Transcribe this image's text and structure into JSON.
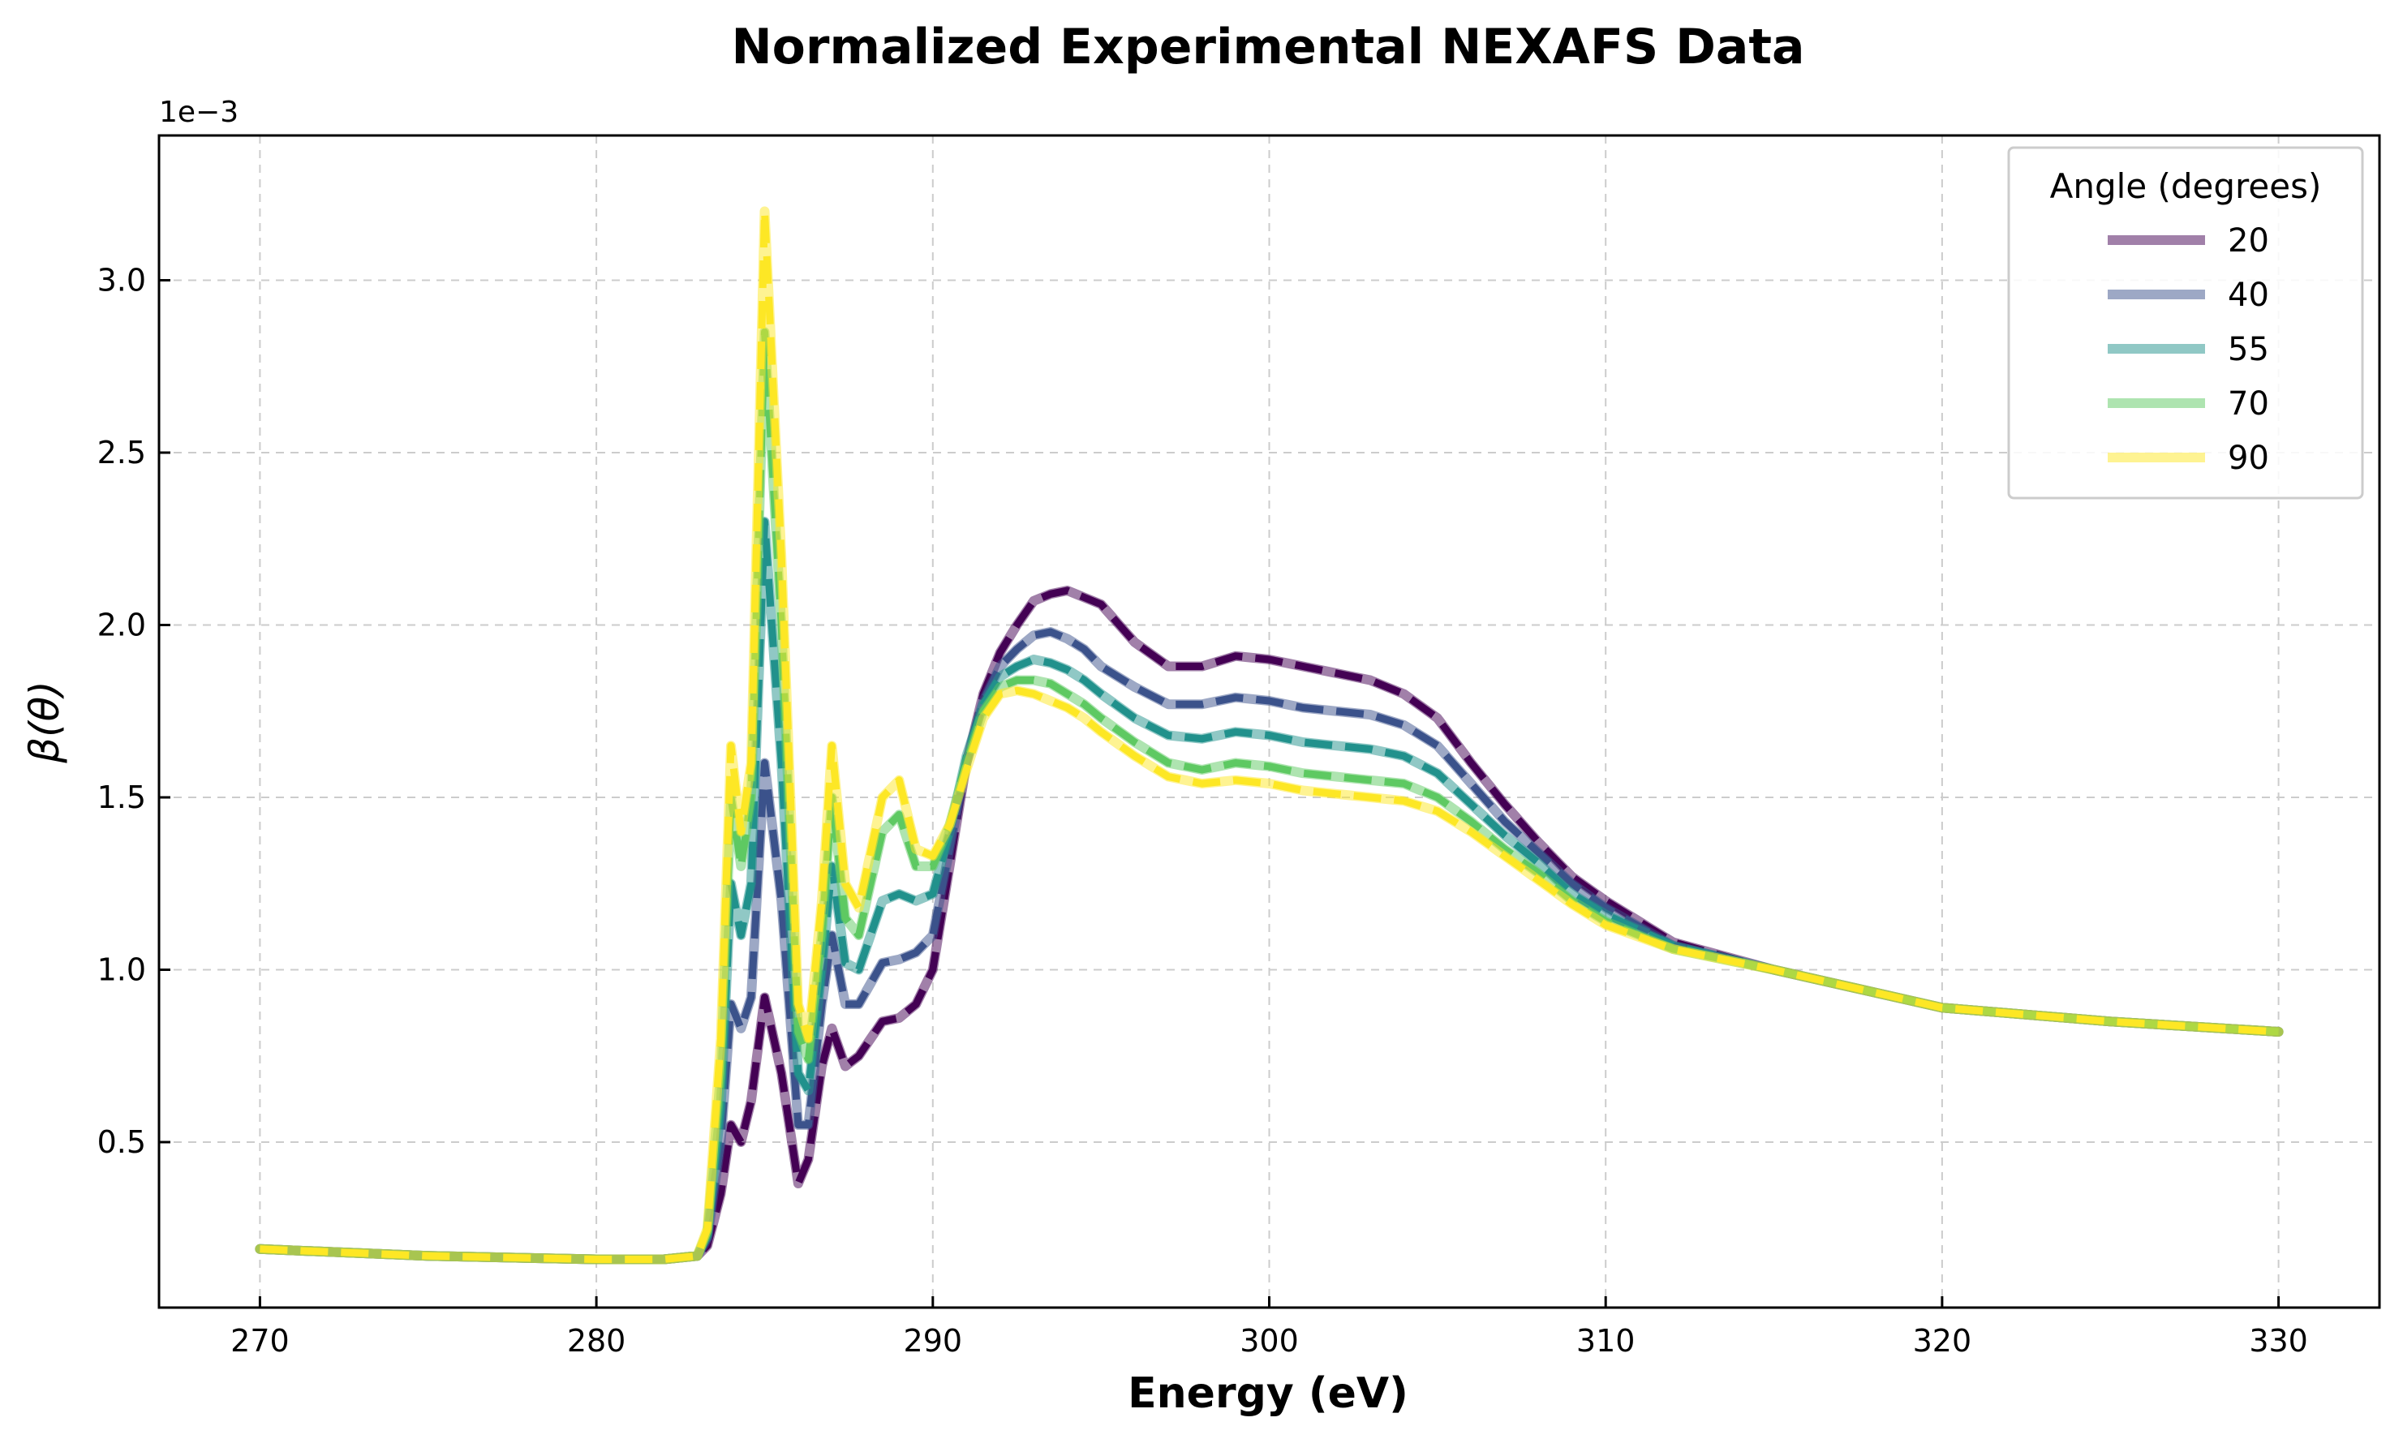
{
  "chart_data": {
    "type": "line",
    "title": "Normalized Experimental NEXAFS Data",
    "xlabel": "Energy (eV)",
    "ylabel": "β(θ)",
    "y_offset_label": "1e−3",
    "xlim": [
      267,
      333
    ],
    "ylim": [
      0.02,
      3.42
    ],
    "xticks": [
      270,
      280,
      290,
      300,
      310,
      320,
      330
    ],
    "xtick_labels": [
      "270",
      "280",
      "290",
      "300",
      "310",
      "320",
      "330"
    ],
    "yticks": [
      0.5,
      1.0,
      1.5,
      2.0,
      2.5,
      3.0
    ],
    "ytick_labels": [
      "0.5",
      "1.0",
      "1.5",
      "2.0",
      "2.5",
      "3.0"
    ],
    "grid": true,
    "legend": {
      "title": "Angle (degrees)",
      "position": "top-right"
    },
    "units_note": "y values in units of 1e-3",
    "series": [
      {
        "name": "20",
        "color": "#440154",
        "x": [
          270,
          275,
          280,
          282,
          283,
          283.3,
          283.7,
          284,
          284.3,
          284.6,
          285,
          285.5,
          286,
          286.3,
          286.7,
          287,
          287.4,
          287.8,
          288.5,
          289,
          289.5,
          290,
          290.5,
          291,
          291.5,
          292,
          292.5,
          293,
          293.5,
          294,
          294.5,
          295,
          296,
          297,
          298,
          299,
          300,
          301,
          302,
          303,
          304,
          305,
          306,
          307,
          308,
          309,
          310,
          312,
          315,
          320,
          325,
          330
        ],
        "y": [
          0.19,
          0.17,
          0.16,
          0.16,
          0.17,
          0.2,
          0.35,
          0.55,
          0.5,
          0.62,
          0.92,
          0.7,
          0.38,
          0.45,
          0.72,
          0.83,
          0.72,
          0.75,
          0.85,
          0.86,
          0.9,
          1.0,
          1.3,
          1.6,
          1.8,
          1.92,
          2.0,
          2.07,
          2.09,
          2.1,
          2.08,
          2.06,
          1.95,
          1.88,
          1.88,
          1.91,
          1.9,
          1.88,
          1.86,
          1.84,
          1.8,
          1.73,
          1.6,
          1.48,
          1.37,
          1.27,
          1.2,
          1.08,
          1.0,
          0.89,
          0.85,
          0.82
        ]
      },
      {
        "name": "40",
        "color": "#3b528b",
        "x": [
          270,
          275,
          280,
          282,
          283,
          283.3,
          283.7,
          284,
          284.3,
          284.6,
          285,
          285.5,
          286,
          286.3,
          286.7,
          287,
          287.4,
          287.8,
          288.5,
          289,
          289.5,
          290,
          290.5,
          291,
          291.5,
          292,
          292.5,
          293,
          293.5,
          294,
          294.5,
          295,
          296,
          297,
          298,
          299,
          300,
          301,
          302,
          303,
          304,
          305,
          306,
          307,
          308,
          309,
          310,
          312,
          315,
          320,
          325,
          330
        ],
        "y": [
          0.19,
          0.17,
          0.16,
          0.16,
          0.17,
          0.22,
          0.5,
          0.9,
          0.83,
          0.92,
          1.6,
          1.2,
          0.55,
          0.55,
          0.9,
          1.1,
          0.9,
          0.9,
          1.02,
          1.03,
          1.05,
          1.1,
          1.35,
          1.6,
          1.78,
          1.88,
          1.93,
          1.97,
          1.98,
          1.96,
          1.93,
          1.88,
          1.82,
          1.77,
          1.77,
          1.79,
          1.78,
          1.76,
          1.75,
          1.74,
          1.71,
          1.65,
          1.54,
          1.43,
          1.34,
          1.25,
          1.18,
          1.07,
          1.0,
          0.89,
          0.85,
          0.82
        ]
      },
      {
        "name": "55",
        "color": "#21918c",
        "x": [
          270,
          275,
          280,
          282,
          283,
          283.3,
          283.7,
          284,
          284.3,
          284.6,
          285,
          285.5,
          286,
          286.3,
          286.7,
          287,
          287.4,
          287.8,
          288.5,
          289,
          289.5,
          290,
          290.5,
          291,
          291.5,
          292,
          292.5,
          293,
          293.5,
          294,
          294.5,
          295,
          296,
          297,
          298,
          299,
          300,
          301,
          302,
          303,
          304,
          305,
          306,
          307,
          308,
          309,
          310,
          312,
          315,
          320,
          325,
          330
        ],
        "y": [
          0.19,
          0.17,
          0.16,
          0.16,
          0.17,
          0.23,
          0.6,
          1.25,
          1.1,
          1.25,
          2.3,
          1.6,
          0.7,
          0.65,
          1.0,
          1.3,
          1.02,
          1.0,
          1.2,
          1.22,
          1.2,
          1.22,
          1.4,
          1.62,
          1.77,
          1.85,
          1.88,
          1.9,
          1.89,
          1.87,
          1.84,
          1.8,
          1.73,
          1.68,
          1.67,
          1.69,
          1.68,
          1.66,
          1.65,
          1.64,
          1.62,
          1.57,
          1.48,
          1.39,
          1.31,
          1.22,
          1.16,
          1.07,
          1.0,
          0.89,
          0.85,
          0.82
        ]
      },
      {
        "name": "70",
        "color": "#5ec962",
        "x": [
          270,
          275,
          280,
          282,
          283,
          283.3,
          283.7,
          284,
          284.3,
          284.6,
          285,
          285.5,
          286,
          286.3,
          286.7,
          287,
          287.4,
          287.8,
          288.5,
          289,
          289.5,
          290,
          290.5,
          291,
          291.5,
          292,
          292.5,
          293,
          293.5,
          294,
          294.5,
          295,
          296,
          297,
          298,
          299,
          300,
          301,
          302,
          303,
          304,
          305,
          306,
          307,
          308,
          309,
          310,
          312,
          315,
          320,
          325,
          330
        ],
        "y": [
          0.19,
          0.17,
          0.16,
          0.16,
          0.17,
          0.24,
          0.7,
          1.5,
          1.3,
          1.5,
          2.85,
          2.0,
          0.82,
          0.74,
          1.1,
          1.5,
          1.15,
          1.1,
          1.4,
          1.45,
          1.3,
          1.3,
          1.42,
          1.6,
          1.75,
          1.82,
          1.84,
          1.84,
          1.83,
          1.8,
          1.77,
          1.73,
          1.66,
          1.6,
          1.58,
          1.6,
          1.59,
          1.57,
          1.56,
          1.55,
          1.54,
          1.5,
          1.43,
          1.35,
          1.28,
          1.2,
          1.14,
          1.06,
          1.0,
          0.89,
          0.85,
          0.82
        ]
      },
      {
        "name": "90",
        "color": "#fde725",
        "x": [
          270,
          275,
          280,
          282,
          283,
          283.3,
          283.7,
          284,
          284.3,
          284.6,
          285,
          285.5,
          286,
          286.3,
          286.7,
          287,
          287.4,
          287.8,
          288.5,
          289,
          289.5,
          290,
          290.5,
          291,
          291.5,
          292,
          292.5,
          293,
          293.5,
          294,
          294.5,
          295,
          296,
          297,
          298,
          299,
          300,
          301,
          302,
          303,
          304,
          305,
          306,
          307,
          308,
          309,
          310,
          312,
          315,
          320,
          325,
          330
        ],
        "y": [
          0.19,
          0.17,
          0.16,
          0.16,
          0.17,
          0.25,
          0.8,
          1.65,
          1.4,
          1.6,
          3.2,
          2.2,
          0.9,
          0.8,
          1.2,
          1.65,
          1.25,
          1.18,
          1.5,
          1.55,
          1.35,
          1.33,
          1.42,
          1.58,
          1.73,
          1.8,
          1.81,
          1.8,
          1.78,
          1.76,
          1.73,
          1.69,
          1.62,
          1.56,
          1.54,
          1.55,
          1.54,
          1.52,
          1.51,
          1.5,
          1.49,
          1.46,
          1.4,
          1.33,
          1.26,
          1.19,
          1.13,
          1.06,
          1.0,
          0.89,
          0.85,
          0.82
        ]
      }
    ]
  }
}
